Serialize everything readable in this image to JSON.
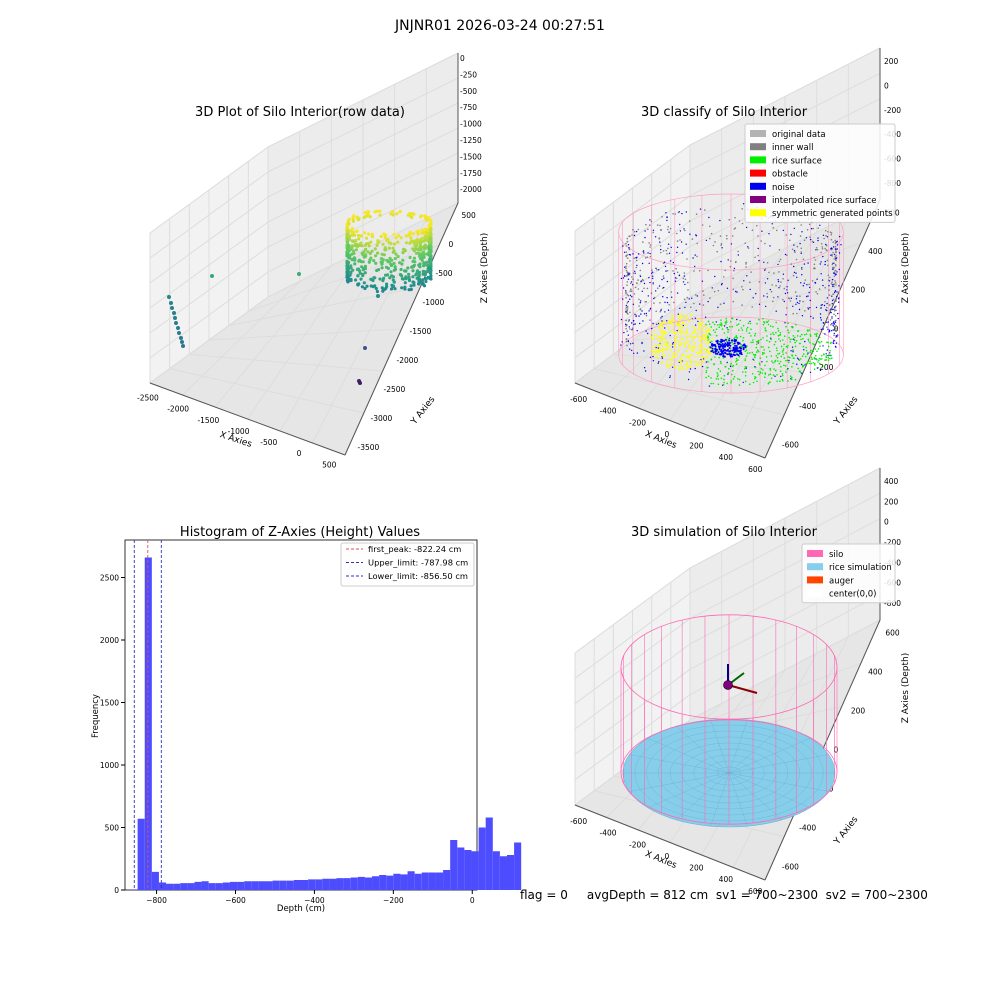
{
  "suptitle": "JNJNR01 2026-03-24 00:27:51",
  "status_line": "flag = 0     avgDepth = 812 cm  sv1 = 700~2300  sv2 = 700~2300",
  "colors": {
    "grid": "#dddddd",
    "pane": "#f2f2f2",
    "hist_bar": "#4d4dff",
    "peak_line": "#e05050",
    "limit_line": "#3030c0"
  },
  "chart_data": [
    {
      "type": "scatter",
      "subtype": "3d-scatter",
      "title": "3D Plot of Silo Interior(row data)",
      "xlabel": "X Axies",
      "ylabel": "Y Axies",
      "zlabel": "Z Axies (Depth)",
      "x_ticks": [
        "-2500",
        "-2000",
        "-1500",
        "-1000",
        "-500",
        "0",
        "500"
      ],
      "y_ticks": [
        "-3500",
        "-3000",
        "-2500",
        "-2000",
        "-1500",
        "-1000",
        "-500",
        "0",
        "500"
      ],
      "z_ticks": [
        "0",
        "-250",
        "-500",
        "-750",
        "-1000",
        "-1250",
        "-1500",
        "-1750",
        "-2000"
      ],
      "colormap": "viridis"
    },
    {
      "type": "scatter",
      "subtype": "3d-scatter",
      "title": "3D classify of Silo Interior",
      "xlabel": "X Axies",
      "ylabel": "Y Axies",
      "zlabel": "Z Axies (Depth)",
      "x_ticks": [
        "-600",
        "-400",
        "-200",
        "0",
        "200",
        "400",
        "600"
      ],
      "y_ticks": [
        "-600",
        "-400",
        "-200",
        "0",
        "200",
        "400",
        "600"
      ],
      "z_ticks": [
        "200",
        "0",
        "-200",
        "-400",
        "-600",
        "-800"
      ],
      "legend_position": "top-right",
      "legend": [
        {
          "label": "original data",
          "color": "#b3b3b3"
        },
        {
          "label": "inner wall",
          "color": "#808080"
        },
        {
          "label": "rice surface",
          "color": "#00ee00"
        },
        {
          "label": "obstacle",
          "color": "#ff0000"
        },
        {
          "label": "noise",
          "color": "#0000ee"
        },
        {
          "label": "interpolated rice surface",
          "color": "#800080"
        },
        {
          "label": "symmetric generated points",
          "color": "#ffff00"
        }
      ]
    },
    {
      "type": "bar",
      "subtype": "histogram",
      "title": "Histogram of Z-Axies (Height) Values",
      "xlabel": "Depth (cm)",
      "ylabel": "Frequency",
      "xlim": [
        -880,
        12
      ],
      "ylim": [
        0,
        2800
      ],
      "x_ticks": [
        -800,
        -600,
        -400,
        -200,
        0
      ],
      "y_ticks": [
        0,
        500,
        1000,
        1500,
        2000,
        2500
      ],
      "bin_width": 18,
      "bin_start": -866,
      "values": [
        5,
        570,
        2660,
        145,
        60,
        50,
        50,
        55,
        55,
        65,
        70,
        55,
        55,
        60,
        65,
        65,
        70,
        70,
        70,
        70,
        75,
        75,
        75,
        80,
        80,
        85,
        85,
        90,
        90,
        95,
        95,
        100,
        105,
        100,
        110,
        120,
        115,
        130,
        125,
        150,
        130,
        140,
        140,
        140,
        160,
        400,
        340,
        320,
        310,
        500,
        580,
        310,
        270,
        280,
        380
      ],
      "vlines": [
        {
          "label": "first_peak: -822.24 cm",
          "x": -822.24,
          "style": "peak"
        },
        {
          "label": "Upper_limit: -787.98 cm",
          "x": -787.98,
          "style": "limit"
        },
        {
          "label": "Lower_limit: -856.50 cm",
          "x": -856.5,
          "style": "limit"
        }
      ],
      "legend_position": "top-right",
      "grid": false
    },
    {
      "type": "scatter",
      "subtype": "3d-simulation",
      "title": "3D simulation of Silo Interior",
      "xlabel": "X Axies",
      "ylabel": "Y Axies",
      "zlabel": "Z Axies (Depth)",
      "x_ticks": [
        "-600",
        "-400",
        "-200",
        "0",
        "200",
        "400",
        "600"
      ],
      "y_ticks": [
        "-600",
        "-400",
        "-200",
        "0",
        "200",
        "400",
        "600"
      ],
      "z_ticks": [
        "400",
        "200",
        "0",
        "-200",
        "-400",
        "-600",
        "-800"
      ],
      "legend_position": "top-right",
      "legend": [
        {
          "label": "silo",
          "color": "#ff69b4"
        },
        {
          "label": "rice simulation",
          "color": "#87ceeb"
        },
        {
          "label": "auger",
          "color": "#ff4500"
        },
        {
          "label": "center(0,0)",
          "color": "#ffffff"
        }
      ]
    }
  ]
}
